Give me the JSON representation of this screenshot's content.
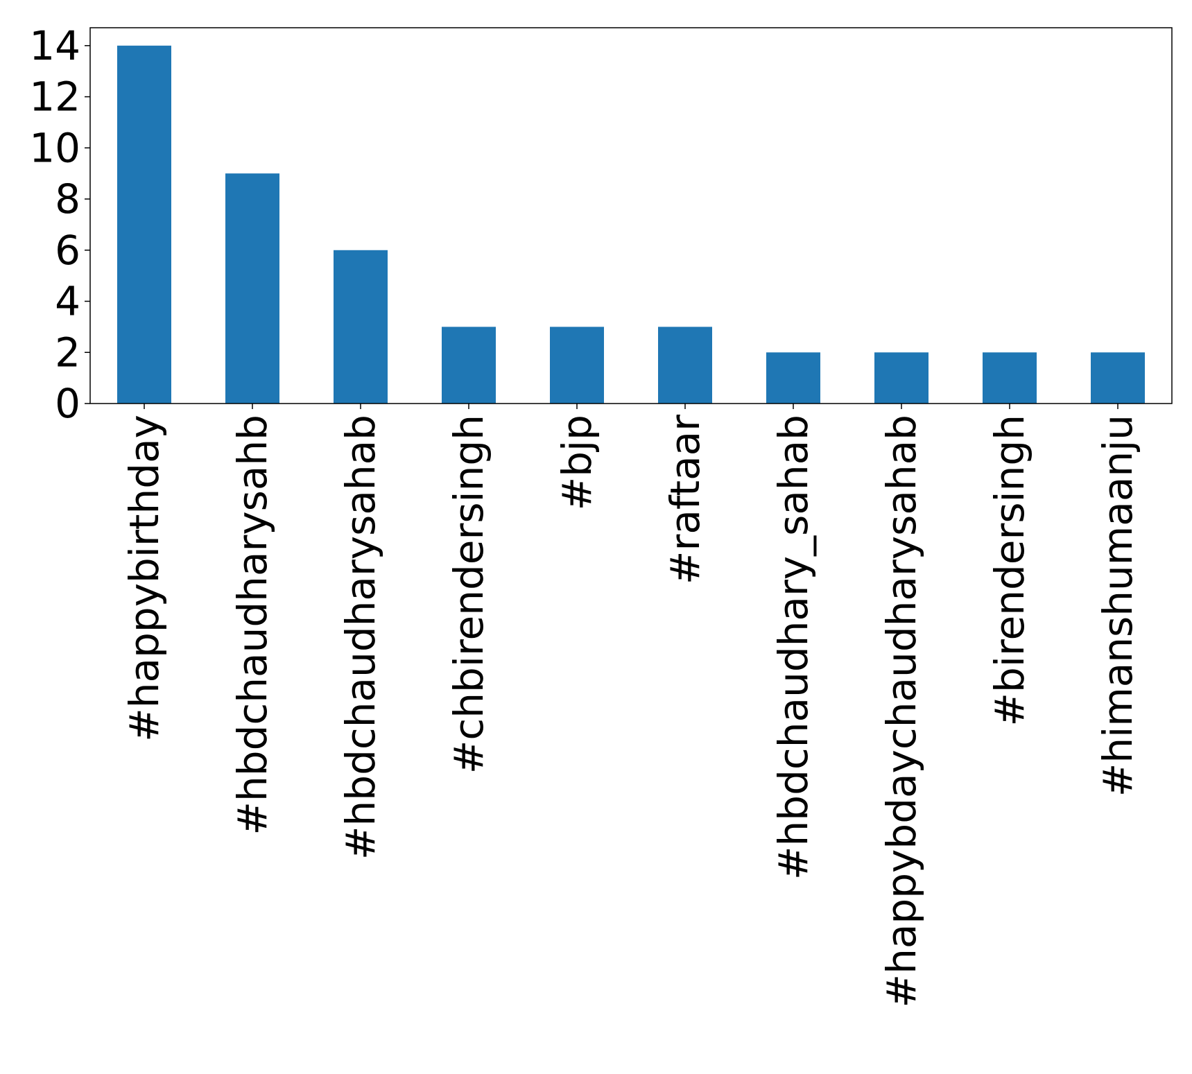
{
  "chart_data": {
    "type": "bar",
    "title": "",
    "xlabel": "",
    "ylabel": "",
    "categories": [
      "#happybirthday",
      "#hbdchaudharysahb",
      "#hbdchaudharysahab",
      "#chbirendersingh",
      "#bjp",
      "#raftaar",
      "#hbdchaudhary_sahab",
      "#happybdaychaudharysahab",
      "#birendersingh",
      "#himanshumaanju"
    ],
    "values": [
      14,
      9,
      6,
      3,
      3,
      3,
      2,
      2,
      2,
      2
    ],
    "ylim": [
      0,
      14.7
    ],
    "yticks": [
      0,
      2,
      4,
      6,
      8,
      10,
      12,
      14
    ],
    "grid": false,
    "legend": "none",
    "bar_color": "#1f77b4"
  }
}
